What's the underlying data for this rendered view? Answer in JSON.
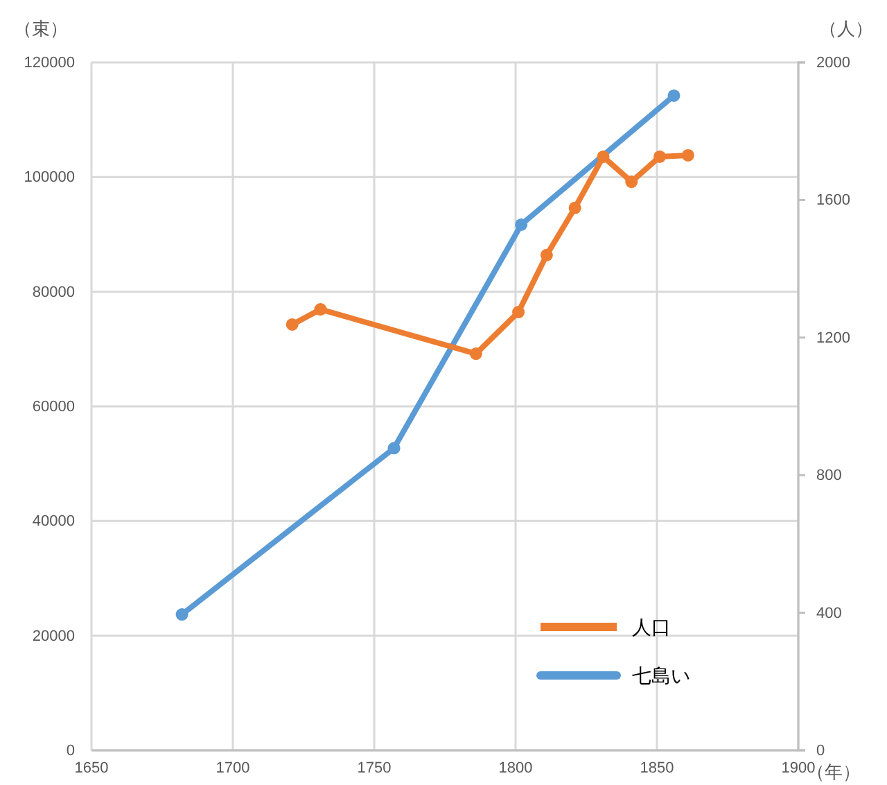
{
  "chart_data": {
    "type": "line",
    "xlabel": "（年）",
    "ylabel": "（束）",
    "y2label": "（人）",
    "xlim": [
      1650,
      1900
    ],
    "xticks": [
      1650,
      1700,
      1750,
      1800,
      1850,
      1900
    ],
    "ylim": [
      0,
      120000
    ],
    "yticks": [
      0,
      20000,
      40000,
      60000,
      80000,
      100000,
      120000
    ],
    "y2lim": [
      0,
      2000
    ],
    "y2ticks": [
      0,
      400,
      800,
      1200,
      1600,
      2000
    ],
    "grid": true,
    "legend": "bottom right",
    "marker": "circle",
    "series": [
      {
        "name": "人口",
        "color": "#ed7d31",
        "axis": "y2",
        "x": [
          1721,
          1731,
          1786,
          1801,
          1811,
          1821,
          1831,
          1841,
          1851,
          1861
        ],
        "values": [
          1238,
          1282,
          1153,
          1274,
          1440,
          1577,
          1726,
          1653,
          1726,
          1730
        ]
      },
      {
        "name": "七島い",
        "color": "#5b9bd5",
        "axis": "y",
        "x": [
          1682,
          1757,
          1802,
          1856
        ],
        "values": [
          23700,
          52700,
          91700,
          114200
        ]
      }
    ]
  }
}
